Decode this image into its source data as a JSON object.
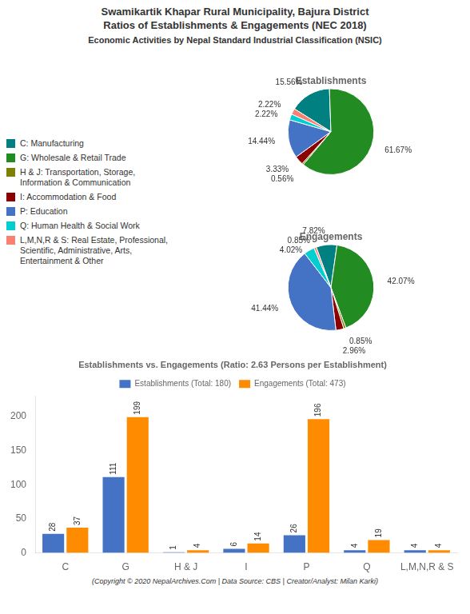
{
  "title": "Swamikartik Khapar Rural Municipality, Bajura District\nRatios of Establishments & Engagements (NEC 2018)",
  "subtitle": "Economic Activities by Nepal Standard Industrial Classification (NSIC)",
  "annotations": [
    "(Copyright © 2020 NepalArchives.Com | Data Source: CBS | Creator/Analyst: Milan Karki)"
  ],
  "chart_data": [
    {
      "type": "pie",
      "title": "Establishments",
      "categories": [
        "C: Manufacturing",
        "G: Wholesale & Retail Trade",
        "H & J: Transportation, Storage,\nInformation & Communication",
        "I: Accommodation & Food",
        "P: Education",
        "Q: Human Health & Social Work",
        "L,M,N,R & S: Real Estate, Professional,\nScientific, Administrative, Arts,\nEntertainment & Other"
      ],
      "values": [
        15.56,
        61.67,
        0.56,
        3.33,
        14.44,
        2.22,
        2.22
      ],
      "value_labels": [
        "15.56%",
        "61.67%",
        "0.56%",
        "3.33%",
        "14.44%",
        "2.22%",
        "2.22%"
      ],
      "colors": [
        "#008080",
        "#228B22",
        "#808000",
        "#8B0000",
        "#4472C4",
        "#00CED1",
        "#FA8072"
      ],
      "data_labels": true,
      "legend": "left"
    },
    {
      "type": "pie",
      "title": "Engagements",
      "categories": [
        "C: Manufacturing",
        "G: Wholesale & Retail Trade",
        "H & J: Transportation, Storage,\nInformation & Communication",
        "I: Accommodation & Food",
        "P: Education",
        "Q: Human Health & Social Work",
        "L,M,N,R & S: Real Estate, Professional,\nScientific, Administrative, Arts,\nEntertainment & Other"
      ],
      "values": [
        7.82,
        42.07,
        0.85,
        2.96,
        41.44,
        4.02,
        0.85
      ],
      "value_labels": [
        "7.82%",
        "42.07%",
        "0.85%",
        "2.96%",
        "41.44%",
        "4.02%",
        "0.85%"
      ],
      "colors": [
        "#008080",
        "#228B22",
        "#808000",
        "#8B0000",
        "#4472C4",
        "#00CED1",
        "#FA8072"
      ],
      "data_labels": true
    },
    {
      "type": "bar",
      "title": "Establishments vs. Engagements (Ratio: 2.63 Persons per Establishment)",
      "categories": [
        "C",
        "G",
        "H & J",
        "I",
        "P",
        "Q",
        "L,M,N,R & S"
      ],
      "series": [
        {
          "name": "Establishments (Total: 180)",
          "color": "#4472C4",
          "values": [
            28,
            111,
            1,
            6,
            26,
            4,
            4
          ]
        },
        {
          "name": "Engagements (Total: 473)",
          "color": "#FF8C00",
          "values": [
            37,
            199,
            4,
            14,
            196,
            19,
            4
          ]
        }
      ],
      "ylim": [
        0,
        230
      ],
      "yticks": [
        0,
        50,
        100,
        150,
        200
      ],
      "grid": false,
      "legend": "top",
      "data_labels": true
    }
  ]
}
